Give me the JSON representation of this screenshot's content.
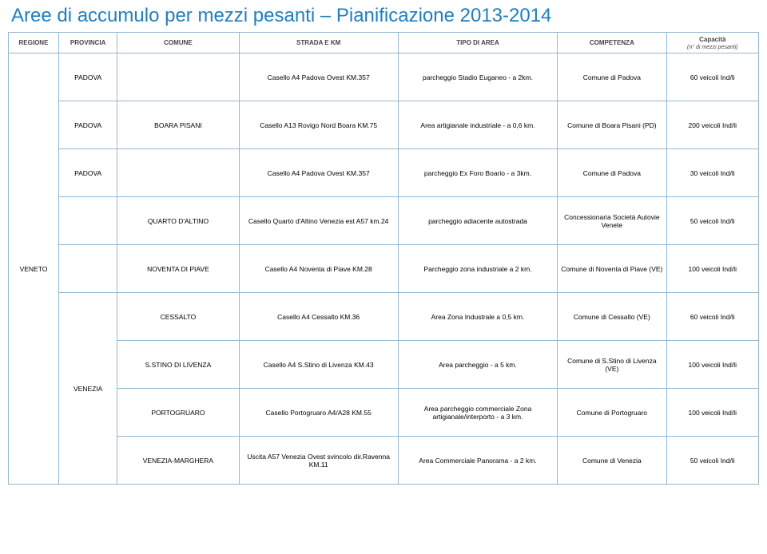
{
  "title": "Aree di accumulo per mezzi pesanti – Pianificazione 2013-2014",
  "headers": {
    "regione": "REGIONE",
    "provincia": "PROVINCIA",
    "comune": "COMUNE",
    "strada": "STRADA E KM",
    "tipo": "TIPO DI AREA",
    "competenza": "COMPETENZA",
    "capacita": "Capacità",
    "capacita_sub": "(n° di mezzi pesanti)"
  },
  "region_label": "VENETO",
  "provincia_label": "VENEZIA",
  "rows": [
    {
      "prov": "PADOVA",
      "comune": "",
      "strada": "Casello A4 Padova Ovest KM.357",
      "tipo": "parcheggio Stadio Euganeo - a 2km.",
      "compet": "Comune di Padova",
      "cap": "60 veicoli Ind/li"
    },
    {
      "prov": "PADOVA",
      "comune": "BOARA PISANI",
      "strada": "Casello A13 Rovigo Nord Boara KM.75",
      "tipo": "Area artigianale industriale - a 0,6 km.",
      "compet": "Comune di Boara Pisani (PD)",
      "cap": "200 veicoli Ind/li"
    },
    {
      "prov": "PADOVA",
      "comune": "",
      "strada": "Casello A4 Padova Ovest KM.357",
      "tipo": "parcheggio Ex Foro Boario - a 3km.",
      "compet": "Comune di Padova",
      "cap": "30 veicoli Ind/li"
    },
    {
      "prov": "",
      "comune": "QUARTO D'ALTINO",
      "strada": "Casello Quarto d'Altino Venezia est A57 km.24",
      "tipo": "parcheggio adiacente autostrada",
      "compet": "Concessionaria Società Autovie Venete",
      "cap": "50 veicoli Ind/li"
    },
    {
      "prov": "",
      "comune": "NOVENTA DI PIAVE",
      "strada": "Casello A4 Noventa di Piave KM.28",
      "tipo": "Parcheggio zona industriale a 2 km.",
      "compet": "Comune di Noventa di Piave (VE)",
      "cap": "100 veicoli Ind/li"
    },
    {
      "prov": "",
      "comune": "CESSALTO",
      "strada": "Casello A4 Cessalto KM.36",
      "tipo": "Area Zona Industrale a 0,5 km.",
      "compet": "Comune di Cessalto (VE)",
      "cap": "60 veicoli Ind/li"
    },
    {
      "prov": "",
      "comune": "S.STINO DI LIVENZA",
      "strada": "Casello A4 S.Stino di Livenza KM.43",
      "tipo": "Area parcheggio - a 5 km.",
      "compet": "Comune di S.Stino di Livenza (VE)",
      "cap": "100 veicoli Ind/li"
    },
    {
      "prov": "",
      "comune": "PORTOGRUARO",
      "strada": "Casello Portogruaro A4/A28 KM.55",
      "tipo": "Area parcheggio commerciale Zona artigianale/interporto - a 3 km.",
      "compet": "Comune di Portogruaro",
      "cap": "100 veicoli Ind/li"
    },
    {
      "prov": "",
      "comune": "VENEZIA-MARGHERA",
      "strada": "Uscita A57 Venezia Ovest svincolo dir.Ravenna  KM.11",
      "tipo": "Area Commerciale Panorama  - a 2 km.",
      "compet": "Comune di Venezia",
      "cap": "50 veicoli Ind/li"
    }
  ]
}
